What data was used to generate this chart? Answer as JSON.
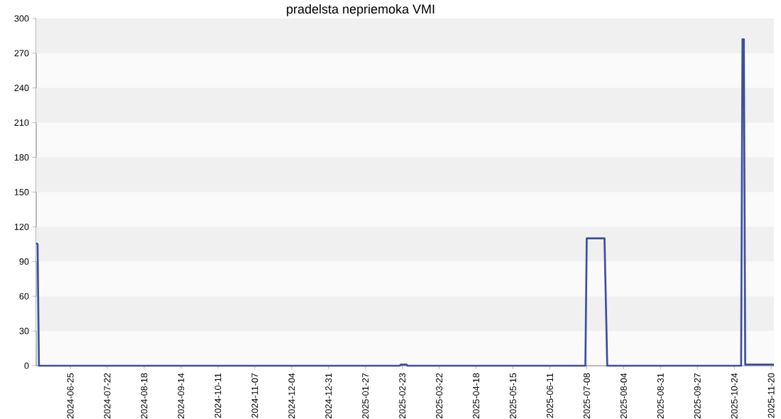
{
  "chart_data": {
    "type": "line",
    "title": "pradelsta nepriemoka VMI",
    "x": [
      "2024-05-31",
      "2024-06-01",
      "2024-06-02",
      "2025-02-21",
      "2025-02-22",
      "2025-02-26",
      "2025-02-27",
      "2025-07-07",
      "2025-07-08",
      "2025-07-21",
      "2025-07-23",
      "2025-10-29",
      "2025-10-30",
      "2025-10-31",
      "2025-11-01",
      "2025-11-22"
    ],
    "values": [
      106,
      105,
      0,
      0,
      1,
      1,
      0,
      0,
      110,
      110,
      0,
      0,
      282,
      282,
      1,
      1
    ],
    "color": "#3b4f9e",
    "xlim": [
      "2024-05-31",
      "2025-11-22"
    ],
    "xticks": [
      "2024-06-25",
      "2024-07-22",
      "2024-08-18",
      "2024-09-14",
      "2024-10-11",
      "2024-11-07",
      "2024-12-04",
      "2024-12-31",
      "2025-01-27",
      "2025-02-23",
      "2025-03-22",
      "2025-04-18",
      "2025-05-15",
      "2025-06-11",
      "2025-07-08",
      "2025-08-04",
      "2025-08-31",
      "2025-09-27",
      "2025-10-24",
      "2025-11-20"
    ],
    "ylim": [
      0,
      300
    ],
    "yticks": [
      0,
      30,
      60,
      90,
      120,
      150,
      180,
      210,
      240,
      270,
      300
    ],
    "marker": "none",
    "line_style": "solid"
  }
}
